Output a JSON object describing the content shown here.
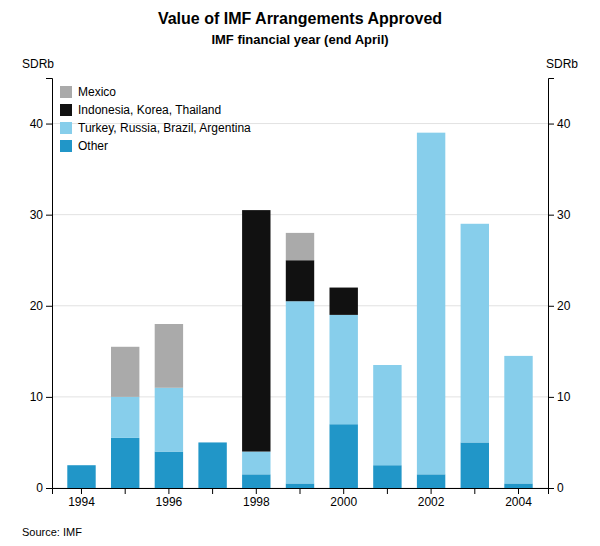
{
  "chart_data": {
    "type": "bar",
    "stacked": true,
    "title": "Value of IMF Arrangements Approved",
    "subtitle": "IMF financial year (end April)",
    "ylabel": "SDRb",
    "y2label": "SDRb",
    "source": "Source: IMF",
    "categories": [
      "1994",
      null,
      "1996",
      null,
      "1998",
      null,
      "2000",
      null,
      "2002",
      null,
      "2004"
    ],
    "series": [
      {
        "name": "Other",
        "color": "#2196c8",
        "values": [
          2.5,
          5.5,
          4.0,
          5.0,
          1.5,
          0.5,
          7.0,
          2.5,
          1.5,
          5.0,
          0.5
        ]
      },
      {
        "name": "Turkey, Russia, Brazil, Argentina",
        "color": "#87ceeb",
        "values": [
          0.0,
          4.5,
          7.0,
          0.0,
          2.5,
          20.0,
          12.0,
          11.0,
          37.5,
          24.0,
          14.0
        ]
      },
      {
        "name": "Indonesia, Korea, Thailand",
        "color": "#111111",
        "values": [
          0.0,
          0.0,
          0.0,
          0.0,
          26.5,
          4.5,
          3.0,
          0.0,
          0.0,
          0.0,
          0.0
        ]
      },
      {
        "name": "Mexico",
        "color": "#aaaaaa",
        "values": [
          0.0,
          5.5,
          7.0,
          0.0,
          0.0,
          3.0,
          0.0,
          0.0,
          0.0,
          0.0,
          0.0
        ]
      }
    ],
    "ylim": [
      0,
      45
    ],
    "yticks": [
      0,
      10,
      20,
      30,
      40
    ],
    "y2lim": [
      0,
      45
    ],
    "y2ticks": [
      0,
      10,
      20,
      30,
      40
    ],
    "grid": true,
    "legend": "upper left"
  }
}
